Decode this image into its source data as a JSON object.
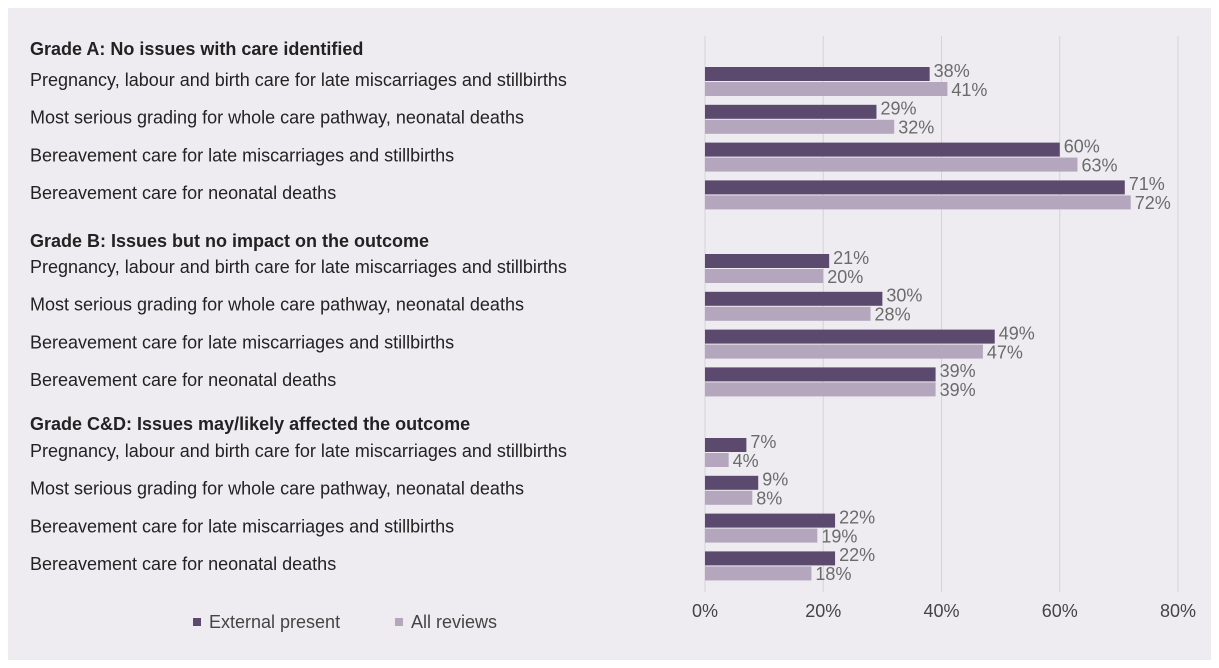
{
  "chart_data": {
    "type": "hbar",
    "groups": [
      {
        "name": "Grade A: No issues with care identified",
        "categories": [
          "Pregnancy, labour and birth care for late miscarriages and stillbirths",
          "Most serious grading for whole care pathway, neonatal deaths",
          "Bereavement care for late miscarriages and stillbirths",
          "Bereavement care for neonatal deaths"
        ]
      },
      {
        "name": "Grade B: Issues but no impact on the outcome",
        "categories": [
          "Pregnancy, labour and birth care for late miscarriages and stillbirths",
          "Most serious grading for whole care pathway, neonatal deaths",
          "Bereavement care for late miscarriages and stillbirths",
          "Bereavement care for neonatal deaths"
        ]
      },
      {
        "name": "Grade C&D: Issues may/likely affected the outcome",
        "categories": [
          "Pregnancy, labour and birth care for late miscarriages and stillbirths",
          "Most serious grading for whole care pathway, neonatal deaths",
          "Bereavement care for late miscarriages and stillbirths",
          "Bereavement care for neonatal deaths"
        ]
      }
    ],
    "series": [
      {
        "name": "External present",
        "color": "#5b4a6e",
        "values": [
          [
            38,
            29,
            60,
            71
          ],
          [
            21,
            30,
            49,
            39
          ],
          [
            7,
            9,
            22,
            22
          ]
        ],
        "value_labels": [
          [
            "38%",
            "29%",
            "60%",
            "71%"
          ],
          [
            "21%",
            "30%",
            "49%",
            "39%"
          ],
          [
            "7%",
            "9%",
            "22%",
            "22%"
          ]
        ]
      },
      {
        "name": "All reviews",
        "color": "#b3a6bd",
        "values": [
          [
            41,
            32,
            63,
            72
          ],
          [
            20,
            28,
            47,
            39
          ],
          [
            4,
            8,
            19,
            18
          ]
        ],
        "value_labels": [
          [
            "41%",
            "32%",
            "63%",
            "72%"
          ],
          [
            "20%",
            "28%",
            "47%",
            "39%"
          ],
          [
            "4%",
            "8%",
            "19%",
            "18%"
          ]
        ]
      }
    ],
    "xlim": [
      0,
      80
    ],
    "xticks": [
      {
        "value": 0,
        "label": "0%"
      },
      {
        "value": 20,
        "label": "20%"
      },
      {
        "value": 40,
        "label": "40%"
      },
      {
        "value": 60,
        "label": "60%"
      },
      {
        "value": 80,
        "label": "80%"
      }
    ],
    "grid": true
  }
}
